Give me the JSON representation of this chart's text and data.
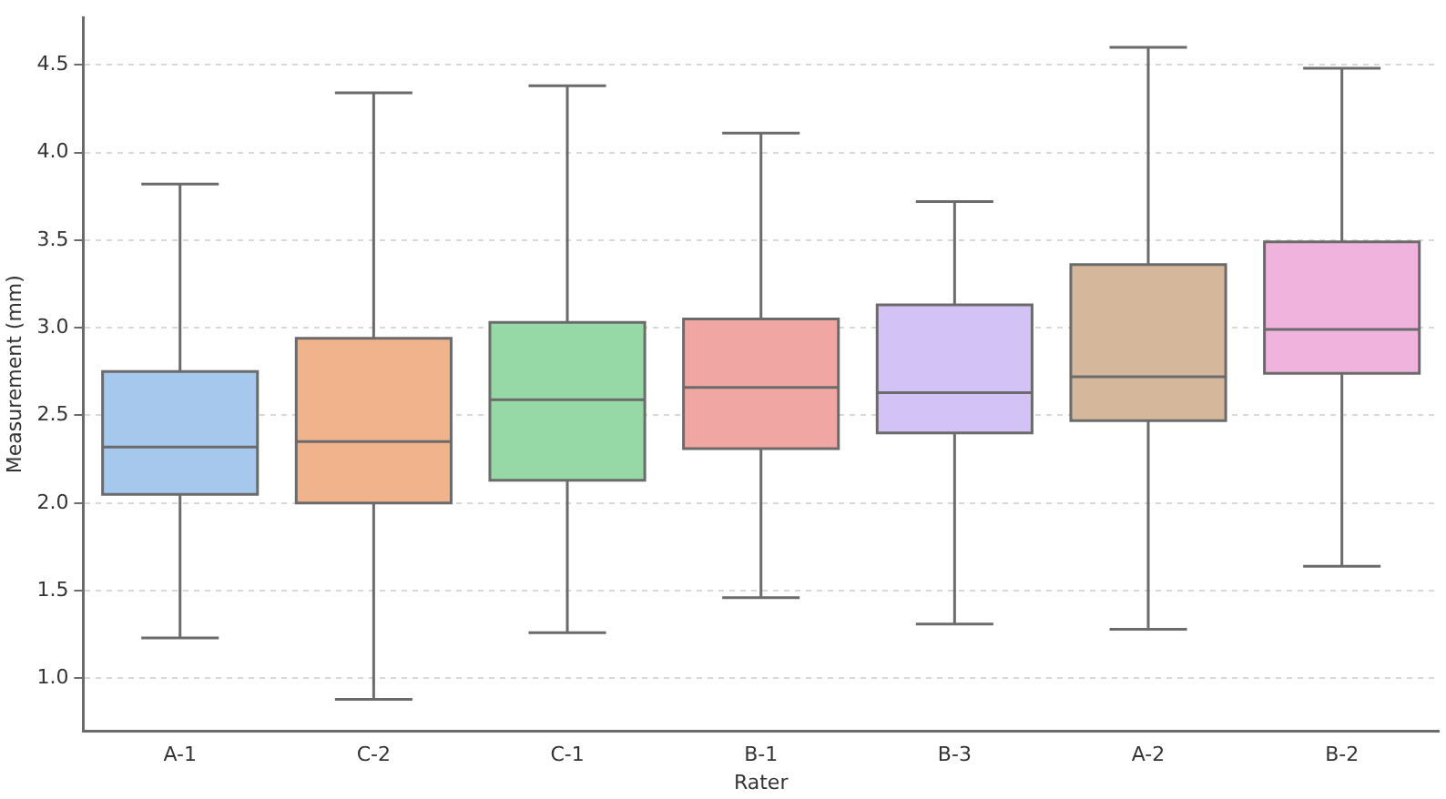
{
  "chart_data": {
    "type": "box",
    "xlabel": "Rater",
    "ylabel": "Measurement (mm)",
    "categories": [
      "A-1",
      "C-2",
      "C-1",
      "B-1",
      "B-3",
      "A-2",
      "B-2"
    ],
    "colors": [
      "#a6c8ec",
      "#f0b38c",
      "#97d9a6",
      "#f0a7a3",
      "#d2c2f5",
      "#d5b89c",
      "#f0b3dd"
    ],
    "boxes": [
      {
        "low": 1.23,
        "q1": 2.05,
        "median": 2.32,
        "q3": 2.75,
        "high": 3.82
      },
      {
        "low": 0.88,
        "q1": 2.0,
        "median": 2.35,
        "q3": 2.94,
        "high": 4.34
      },
      {
        "low": 1.26,
        "q1": 2.13,
        "median": 2.59,
        "q3": 3.03,
        "high": 4.38
      },
      {
        "low": 1.46,
        "q1": 2.31,
        "median": 2.66,
        "q3": 3.05,
        "high": 4.11
      },
      {
        "low": 1.31,
        "q1": 2.4,
        "median": 2.63,
        "q3": 3.13,
        "high": 3.72
      },
      {
        "low": 1.28,
        "q1": 2.47,
        "median": 2.72,
        "q3": 3.36,
        "high": 4.6
      },
      {
        "low": 1.64,
        "q1": 2.74,
        "median": 2.99,
        "q3": 3.49,
        "high": 4.48
      }
    ],
    "ylim": [
      0.7,
      4.77
    ],
    "yticks": [
      {
        "value": 1,
        "label": "1.0"
      },
      {
        "value": 1.5,
        "label": "1.5"
      },
      {
        "value": 2,
        "label": "2.0"
      },
      {
        "value": 2.5,
        "label": "2.5"
      },
      {
        "value": 3,
        "label": "3.0"
      },
      {
        "value": 3.5,
        "label": "3.5"
      },
      {
        "value": 4,
        "label": "4.0"
      },
      {
        "value": 4.5,
        "label": "4.5"
      }
    ],
    "grid": "y",
    "legend": false
  }
}
